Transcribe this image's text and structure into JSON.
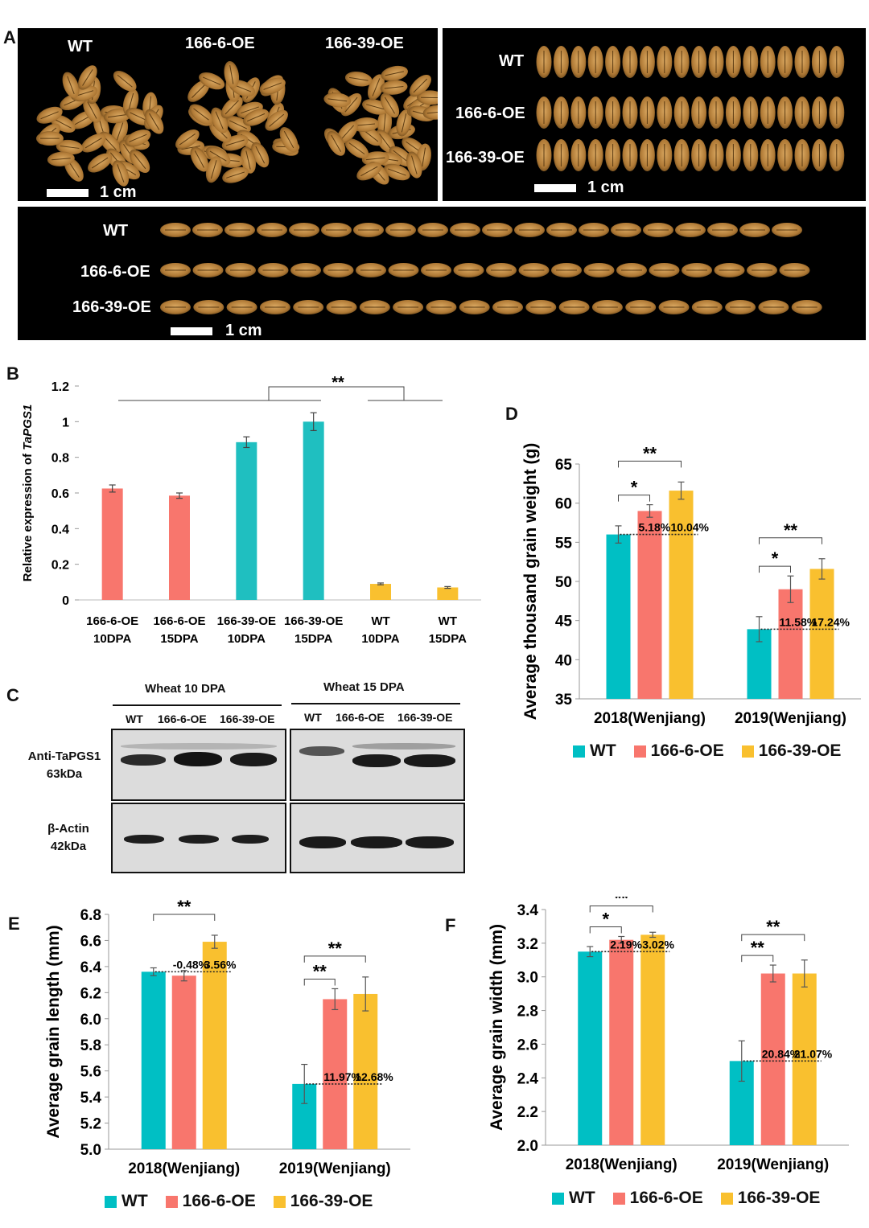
{
  "panel_letters": [
    "A",
    "B",
    "C",
    "D",
    "E",
    "F"
  ],
  "colors": {
    "wt": "#00bfc4",
    "oe6": "#f8766d",
    "oe39": "#f9c02f",
    "wt_expr": "#1fbfc0"
  },
  "panel_a": {
    "box1": {
      "labels": [
        "WT",
        "166-6-OE",
        "166-39-OE"
      ],
      "scale": "1 cm"
    },
    "box2": {
      "labels": [
        "WT",
        "166-6-OE",
        "166-39-OE"
      ],
      "scale": "1 cm"
    },
    "box3": {
      "labels": [
        "WT",
        "166-6-OE",
        "166-39-OE"
      ],
      "scale": "1 cm"
    }
  },
  "panel_c": {
    "headers": [
      "Wheat 10 DPA",
      "Wheat 15 DPA"
    ],
    "lanes": [
      "WT",
      "166-6-OE",
      "166-39-OE",
      "WT",
      "166-6-OE",
      "166-39-OE"
    ],
    "row1_label": [
      "Anti-TaPGS1",
      "63kDa"
    ],
    "row2_label": [
      "β-Actin",
      "42kDa"
    ]
  },
  "chart_data": [
    {
      "id": "B",
      "type": "bar",
      "ylabel_prefix": "Relative expression of ",
      "ylabel_italic": "TaPGS1",
      "categories": [
        [
          "166-6-OE",
          "10DPA"
        ],
        [
          "166-6-OE",
          "15DPA"
        ],
        [
          "166-39-OE",
          "10DPA"
        ],
        [
          "166-39-OE",
          "15DPA"
        ],
        [
          "WT",
          "10DPA"
        ],
        [
          "WT",
          "15DPA"
        ]
      ],
      "values": [
        0.625,
        0.585,
        0.885,
        1.0,
        0.09,
        0.07
      ],
      "errors": [
        0.02,
        0.015,
        0.03,
        0.05,
        0.005,
        0.005
      ],
      "bar_colors": [
        "#f8766d",
        "#f8766d",
        "#1fbfc0",
        "#1fbfc0",
        "#f9c02f",
        "#f9c02f"
      ],
      "ylim": [
        0,
        1.2
      ],
      "yticks": [
        "0",
        "0.2",
        "0.4",
        "0.6",
        "0.8",
        "1",
        "1.2"
      ],
      "significance": "**"
    },
    {
      "id": "D",
      "type": "bar",
      "ylabel": "Average thousand  grain weight (g)",
      "groups": [
        "2018(Wenjiang)",
        "2019(Wenjiang)"
      ],
      "series": [
        {
          "name": "WT",
          "values": [
            56.0,
            43.9
          ],
          "errors": [
            1.1,
            1.6
          ]
        },
        {
          "name": "166-6-OE",
          "values": [
            59.0,
            49.0
          ],
          "errors": [
            0.8,
            1.7
          ]
        },
        {
          "name": "166-39-OE",
          "values": [
            61.6,
            51.6
          ],
          "errors": [
            1.1,
            1.3
          ]
        }
      ],
      "ylim": [
        35,
        65
      ],
      "yticks": [
        "35",
        "40",
        "45",
        "50",
        "55",
        "60",
        "65"
      ],
      "percents": [
        [
          "5.18%",
          "10.04%"
        ],
        [
          "11.58%",
          "17.24%"
        ]
      ],
      "stars": [
        [
          "*",
          "**"
        ],
        [
          "*",
          "**"
        ]
      ]
    },
    {
      "id": "E",
      "type": "bar",
      "ylabel": "Average grain length (mm)",
      "groups": [
        "2018(Wenjiang)",
        "2019(Wenjiang)"
      ],
      "series": [
        {
          "name": "WT",
          "values": [
            6.36,
            5.5
          ],
          "errors": [
            0.03,
            0.15
          ]
        },
        {
          "name": "166-6-OE",
          "values": [
            6.33,
            6.15
          ],
          "errors": [
            0.04,
            0.08
          ]
        },
        {
          "name": "166-39-OE",
          "values": [
            6.59,
            6.19
          ],
          "errors": [
            0.05,
            0.13
          ]
        }
      ],
      "ylim": [
        5.0,
        6.8
      ],
      "yticks": [
        "5.0",
        "5.2",
        "5.4",
        "5.6",
        "5.8",
        "6.0",
        "6.2",
        "6.4",
        "6.6",
        "6.8"
      ],
      "percents": [
        [
          "-0.48%",
          "3.56%"
        ],
        [
          "11.97%",
          "12.68%"
        ]
      ],
      "stars": [
        [
          null,
          "**"
        ],
        [
          "**",
          "**"
        ]
      ]
    },
    {
      "id": "F",
      "type": "bar",
      "ylabel": "Average grain width (mm)",
      "groups": [
        "2018(Wenjiang)",
        "2019(Wenjiang)"
      ],
      "series": [
        {
          "name": "WT",
          "values": [
            3.15,
            2.5
          ],
          "errors": [
            0.03,
            0.12
          ]
        },
        {
          "name": "166-6-OE",
          "values": [
            3.22,
            3.02
          ],
          "errors": [
            0.02,
            0.05
          ]
        },
        {
          "name": "166-39-OE",
          "values": [
            3.25,
            3.02
          ],
          "errors": [
            0.015,
            0.08
          ]
        }
      ],
      "ylim": [
        2.0,
        3.4
      ],
      "yticks": [
        "2.0",
        "2.2",
        "2.4",
        "2.6",
        "2.8",
        "3.0",
        "3.2",
        "3.4"
      ],
      "percents": [
        [
          "2.19%",
          "3.02%"
        ],
        [
          "20.84%",
          "21.07%"
        ]
      ],
      "stars": [
        [
          "*",
          "**"
        ],
        [
          "**",
          "**"
        ]
      ]
    }
  ]
}
